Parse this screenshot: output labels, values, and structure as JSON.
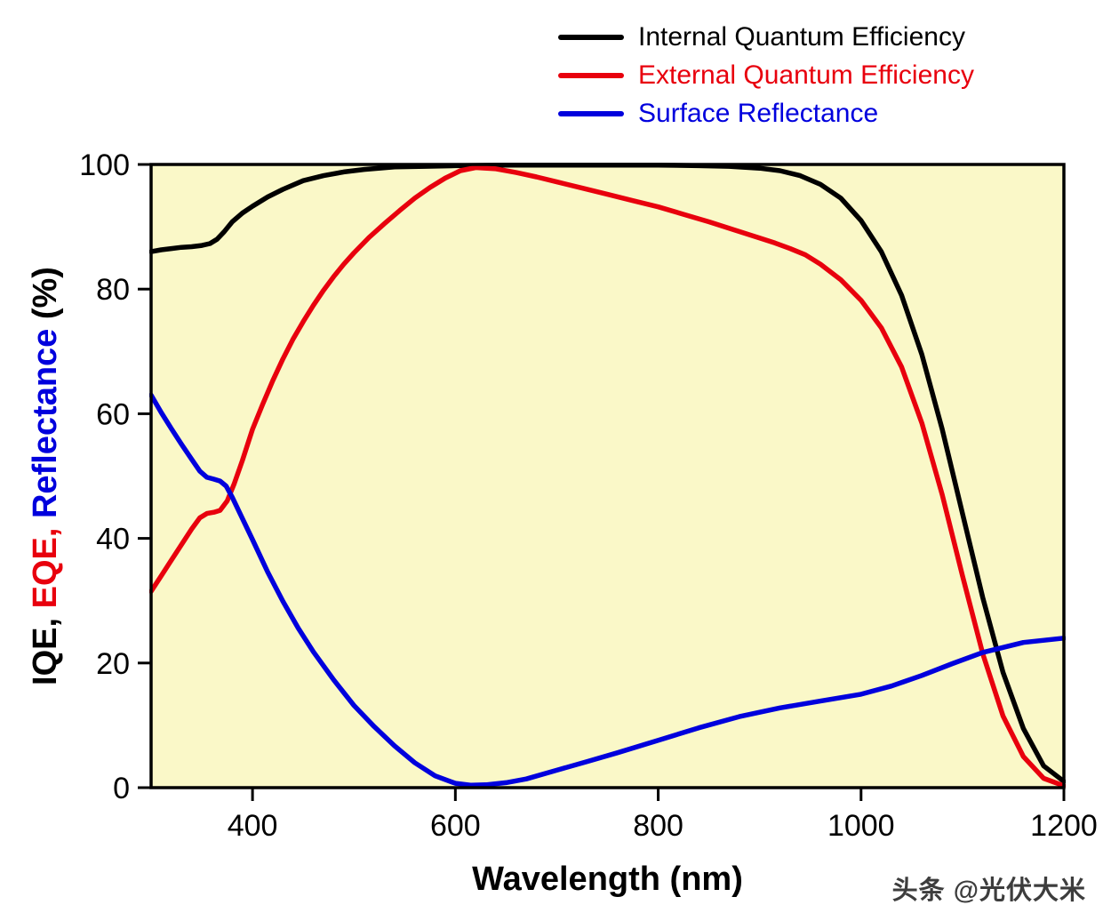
{
  "watermark": {
    "text": "头条 @光伏大米"
  },
  "chart_data": {
    "type": "line",
    "title": "",
    "xlabel": "Wavelength (nm)",
    "ylabel_parts": [
      {
        "text": "IQE",
        "color": "#000000"
      },
      {
        "text": ", ",
        "color": "#000000"
      },
      {
        "text": "EQE",
        "color": "#e8000d"
      },
      {
        "text": ", ",
        "color": "#e8000d"
      },
      {
        "text": "Reflectance",
        "color": "#0000dd"
      },
      {
        "text": " (%)",
        "color": "#000000"
      }
    ],
    "xlim": [
      300,
      1200
    ],
    "ylim": [
      0,
      100
    ],
    "x_ticks": [
      400,
      600,
      800,
      1000,
      1200
    ],
    "y_ticks": [
      0,
      20,
      40,
      60,
      80,
      100
    ],
    "plot_bg": "#FAF8C8",
    "grid": false,
    "legend_position": "top-right",
    "series": [
      {
        "name": "Internal Quantum Efficiency",
        "color": "#000000",
        "x": [
          300,
          310,
          320,
          330,
          340,
          350,
          358,
          365,
          372,
          380,
          390,
          400,
          415,
          430,
          450,
          470,
          490,
          510,
          540,
          570,
          600,
          650,
          700,
          750,
          800,
          840,
          870,
          900,
          920,
          940,
          960,
          980,
          1000,
          1020,
          1040,
          1060,
          1080,
          1100,
          1120,
          1140,
          1160,
          1180,
          1200
        ],
        "y": [
          86,
          86.3,
          86.5,
          86.7,
          86.8,
          87,
          87.3,
          88,
          89.2,
          90.8,
          92.2,
          93.3,
          94.8,
          96,
          97.4,
          98.2,
          98.8,
          99.2,
          99.6,
          99.7,
          99.8,
          99.9,
          99.9,
          99.9,
          99.9,
          99.8,
          99.7,
          99.4,
          99,
          98.2,
          96.8,
          94.6,
          91,
          86,
          79,
          69.5,
          57.5,
          44,
          30.5,
          18.5,
          9.5,
          3.5,
          1
        ]
      },
      {
        "name": "External Quantum Efficiency",
        "color": "#e8000d",
        "x": [
          300,
          310,
          320,
          330,
          340,
          348,
          355,
          362,
          368,
          375,
          382,
          390,
          400,
          410,
          420,
          430,
          440,
          450,
          460,
          470,
          480,
          490,
          500,
          515,
          530,
          545,
          560,
          575,
          590,
          605,
          620,
          640,
          660,
          680,
          700,
          725,
          750,
          775,
          800,
          825,
          850,
          875,
          900,
          915,
          930,
          945,
          960,
          980,
          1000,
          1020,
          1040,
          1060,
          1080,
          1100,
          1120,
          1140,
          1160,
          1180,
          1200
        ],
        "y": [
          31.5,
          34,
          36.5,
          39,
          41.5,
          43.3,
          44,
          44.2,
          44.5,
          46,
          48.8,
          52.5,
          57.5,
          61.5,
          65.3,
          68.8,
          72,
          74.8,
          77.4,
          79.8,
          82,
          84,
          85.8,
          88.3,
          90.5,
          92.6,
          94.6,
          96.3,
          97.8,
          99,
          99.5,
          99.3,
          98.7,
          98,
          97.2,
          96.2,
          95.2,
          94.2,
          93.2,
          92,
          90.8,
          89.5,
          88.2,
          87.4,
          86.5,
          85.5,
          84,
          81.5,
          78.2,
          73.8,
          67.5,
          58.5,
          47,
          34,
          21.5,
          11.5,
          5,
          1.5,
          0.3
        ]
      },
      {
        "name": "Surface Reflectance",
        "color": "#0000dd",
        "x": [
          300,
          310,
          320,
          330,
          340,
          348,
          355,
          362,
          368,
          374,
          380,
          390,
          400,
          415,
          430,
          445,
          460,
          480,
          500,
          520,
          540,
          560,
          580,
          600,
          615,
          630,
          650,
          670,
          700,
          730,
          760,
          800,
          840,
          880,
          920,
          960,
          1000,
          1030,
          1060,
          1090,
          1120,
          1160,
          1200
        ],
        "y": [
          63,
          60.2,
          57.6,
          55.1,
          52.7,
          50.8,
          49.8,
          49.5,
          49.2,
          48.4,
          46.6,
          43.2,
          39.8,
          34.6,
          29.9,
          25.6,
          21.8,
          17.3,
          13.2,
          9.8,
          6.7,
          4,
          1.9,
          0.7,
          0.4,
          0.45,
          0.8,
          1.4,
          2.8,
          4.2,
          5.6,
          7.6,
          9.6,
          11.4,
          12.8,
          13.9,
          15,
          16.3,
          18,
          19.9,
          21.7,
          23.3,
          24
        ]
      }
    ]
  }
}
